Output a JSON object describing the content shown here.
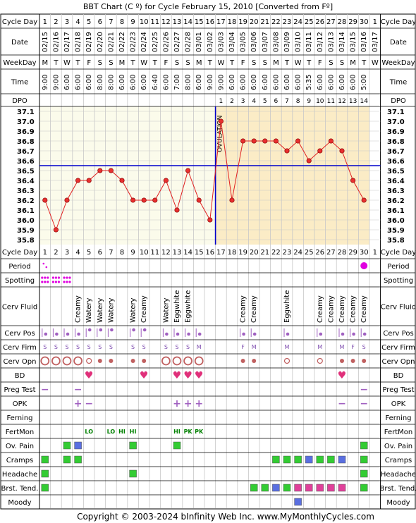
{
  "title": "BBT Chart (C º) for Cycle February 15, 2010  [Converted from Fº]",
  "footer": "Copyright © 2003-2024 bInfinity Web Inc.    www.MyMonthlyCycles.com",
  "row_labels": {
    "cycle_day": "Cycle Day",
    "date": "Date",
    "weekday": "WeekDay",
    "time": "Time",
    "dpo": "DPO",
    "period": "Period",
    "spotting": "Spotting",
    "cerv_fluid": "Cerv Fluid",
    "cerv_pos": "Cerv Pos",
    "cerv_firm": "Cerv Firm",
    "cerv_opn": "Cerv Opn",
    "bd": "BD",
    "preg_test": "Preg Test",
    "opk": "OPK",
    "ferning": "Ferning",
    "fertmon": "FertMon",
    "ov_pain": "Ov. Pain",
    "cramps": "Cramps",
    "headache": "Headache",
    "brst_tend": "Brst. Tend.",
    "moody": "Moody"
  },
  "ovulation_label": "OVULATION",
  "colors": {
    "follicular_bg": "#fbfbeb",
    "luteal_bg": "#fbecc6",
    "grid": "#c8c8c8",
    "line": "#e02020",
    "point": "#e83030",
    "coverline": "#0000cc",
    "ovulation_line": "#0000cc",
    "symptom_green": "#33cc33",
    "symptom_blue": "#5a6fe0",
    "symptom_pink": "#e0409a",
    "dot_purple": "#a060c0",
    "opn_red": "#c06060",
    "heart": "#e0307a",
    "period_dot": "#e000e0",
    "firm_text": "#8050b0"
  },
  "chart_data": {
    "type": "line",
    "title": "BBT Chart (C º) for Cycle February 15, 2010  [Converted from Fº]",
    "cycle_days": [
      1,
      2,
      3,
      4,
      5,
      6,
      7,
      8,
      9,
      10,
      11,
      12,
      13,
      14,
      15,
      16,
      17,
      18,
      19,
      20,
      21,
      22,
      23,
      24,
      25,
      26,
      27,
      28,
      29,
      30,
      1
    ],
    "dates": [
      "02/15",
      "02/16",
      "02/17",
      "02/18",
      "02/19",
      "02/20",
      "02/21",
      "02/22",
      "02/23",
      "02/24",
      "02/25",
      "02/26",
      "02/27",
      "02/28",
      "03/01",
      "03/02",
      "03/03",
      "03/04",
      "03/05",
      "03/06",
      "03/07",
      "03/08",
      "03/09",
      "03/10",
      "03/11",
      "03/12",
      "03/13",
      "03/14",
      "03/15",
      "03/16",
      "03/17"
    ],
    "weekdays": [
      "M",
      "T",
      "W",
      "T",
      "F",
      "S",
      "S",
      "M",
      "T",
      "W",
      "T",
      "F",
      "S",
      "S",
      "M",
      "T",
      "W",
      "T",
      "F",
      "S",
      "S",
      "M",
      "T",
      "W",
      "T",
      "F",
      "S",
      "S",
      "M",
      "T",
      "W"
    ],
    "times": [
      "9:00",
      "9:00",
      "6:00",
      "6:00",
      "6:00",
      "8:00",
      "8:00",
      "6:00",
      "6:00",
      "6:00",
      "6:40",
      "6:00",
      "7:00",
      "8:00",
      "6:00",
      "9:00",
      "9:00",
      "6:00",
      "6:00",
      "6:00",
      "6:00",
      "6:00",
      "6:00",
      "6:00",
      "5:35",
      "6:00",
      "6:00",
      "6:00",
      "6:00",
      "5:00",
      ""
    ],
    "dpo": [
      "",
      "",
      "",
      "",
      "",
      "",
      "",
      "",
      "",
      "",
      "",
      "",
      "",
      "",
      "",
      "",
      "1",
      "2",
      "3",
      "4",
      "5",
      "6",
      "7",
      "8",
      "9",
      "10",
      "11",
      "12",
      "13",
      "14",
      ""
    ],
    "temperatures": [
      36.2,
      35.9,
      36.2,
      36.4,
      36.4,
      36.5,
      36.5,
      36.4,
      36.2,
      36.2,
      36.2,
      36.4,
      36.1,
      36.5,
      36.2,
      36.0,
      37.0,
      36.2,
      36.8,
      36.8,
      36.8,
      36.8,
      36.7,
      36.8,
      36.6,
      36.7,
      36.8,
      36.7,
      36.4,
      36.2,
      null
    ],
    "ylim": [
      35.8,
      37.1
    ],
    "yticks": [
      37.1,
      37.0,
      36.9,
      36.8,
      36.7,
      36.6,
      36.5,
      36.4,
      36.3,
      36.2,
      36.1,
      36.0,
      35.9,
      35.8
    ],
    "coverline": 36.55,
    "ovulation_after_day": 16
  },
  "observations": {
    "period": {
      "1": "spot",
      "30": "heavy"
    },
    "spotting": [
      1,
      2,
      3
    ],
    "cerv_fluid": {
      "4": "Creamy",
      "5": "Watery",
      "6": "Watery",
      "7": "Watery",
      "9": "Watery",
      "10": "Creamy",
      "12": "Watery",
      "13": "Eggwhite",
      "14": "Eggwhite",
      "19": "Creamy",
      "20": "Creamy",
      "23": "Eggwhite",
      "26": "Creamy",
      "27": "Creamy",
      "28": "Creamy",
      "29": "Creamy",
      "30": "Creamy"
    },
    "cerv_pos": {
      "1": "low",
      "2": "low",
      "3": "low",
      "4": "low",
      "5": "high",
      "6": "high",
      "7": "high",
      "9": "high",
      "10": "high",
      "12": "low",
      "13": "low",
      "14": "low",
      "15": "low",
      "19": "low",
      "20": "low",
      "23": "low",
      "26": "low",
      "28": "low",
      "29": "low",
      "30": "low"
    },
    "cerv_firm": {
      "1": "S",
      "2": "S",
      "3": "S",
      "4": "S",
      "5": "S",
      "6": "S",
      "7": "S",
      "9": "S",
      "10": "S",
      "12": "S",
      "13": "S",
      "14": "S",
      "15": "M",
      "19": "F",
      "20": "M",
      "23": "M",
      "26": "M",
      "28": "M",
      "29": "F",
      "30": "S"
    },
    "cerv_opn": {
      "1": "open",
      "2": "open",
      "3": "open",
      "4": "open",
      "5": "medium",
      "6": "small",
      "7": "small",
      "9": "small",
      "10": "small",
      "12": "open",
      "13": "open",
      "14": "open",
      "15": "open",
      "19": "small",
      "20": "small",
      "23": "medium",
      "26": "medium",
      "28": "small",
      "29": "small",
      "30": "small"
    },
    "bd": [
      5,
      10,
      13,
      14,
      15,
      28
    ],
    "preg_test": {
      "1": "−",
      "4": "−",
      "30": "−"
    },
    "opk": {
      "4": "+",
      "5": "−",
      "13": "+",
      "14": "+",
      "15": "+",
      "28": "−",
      "30": "−"
    },
    "fertmon": {
      "5": "LO",
      "7": "LO",
      "8": "HI",
      "9": "HI",
      "13": "HI",
      "14": "PK",
      "15": "PK"
    },
    "ov_pain": {
      "3": "green",
      "4": "blue",
      "9": "green",
      "13": "green",
      "30": "green"
    },
    "cramps": {
      "1": "green",
      "3": "green",
      "4": "green",
      "22": "green",
      "23": "green",
      "24": "green",
      "25": "blue",
      "26": "green",
      "27": "green",
      "28": "blue",
      "30": "green"
    },
    "headache": {
      "1": "green",
      "9": "green",
      "30": "green"
    },
    "brst_tend": {
      "1": "green",
      "20": "green",
      "21": "green",
      "22": "blue",
      "23": "green",
      "24": "pink",
      "25": "pink",
      "26": "pink",
      "27": "pink",
      "28": "pink",
      "30": "green"
    },
    "moody": {
      "24": "blue"
    }
  }
}
